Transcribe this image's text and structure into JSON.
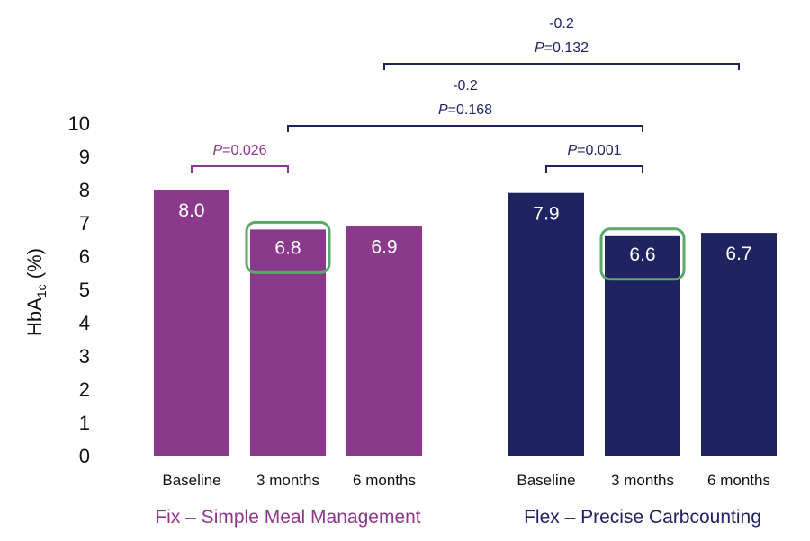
{
  "chart_data": {
    "type": "bar",
    "ylabel_main": "HbA",
    "ylabel_sub": "1c",
    "ylabel_unit": " (%)",
    "ylim": [
      0,
      10
    ],
    "yticks": [
      "0",
      "1",
      "2",
      "3",
      "4",
      "5",
      "6",
      "7",
      "8",
      "9",
      "10"
    ],
    "grid": false,
    "groups": [
      {
        "label": "Fix – Simple Meal Management",
        "color": "#8b3a8b",
        "label_color": "#8b3a8b",
        "bars": [
          {
            "category": "Baseline",
            "value": 8.0,
            "label": "8.0",
            "highlight": false
          },
          {
            "category": "3 months",
            "value": 6.8,
            "label": "6.8",
            "highlight": true
          },
          {
            "category": "6 months",
            "value": 6.9,
            "label": "6.9",
            "highlight": false
          }
        ]
      },
      {
        "label": "Flex – Precise Carbcounting",
        "color": "#1f2461",
        "label_color": "#1f2461",
        "bars": [
          {
            "category": "Baseline",
            "value": 7.9,
            "label": "7.9",
            "highlight": false
          },
          {
            "category": "3 months",
            "value": 6.6,
            "label": "6.6",
            "highlight": true
          },
          {
            "category": "6 months",
            "value": 6.7,
            "label": "6.7",
            "highlight": false
          }
        ]
      }
    ],
    "highlight_color": "#5aa86a",
    "comparisons": [
      {
        "from": [
          0,
          0
        ],
        "to": [
          0,
          1
        ],
        "diff": "",
        "p": "0.026",
        "color": "#8b3a8b"
      },
      {
        "from": [
          1,
          0
        ],
        "to": [
          1,
          1
        ],
        "diff": "",
        "p": "0.001",
        "color": "#1f2461"
      },
      {
        "from": [
          0,
          1
        ],
        "to": [
          1,
          1
        ],
        "diff": "-0.2",
        "p": "0.168",
        "color": "#1f2461"
      },
      {
        "from": [
          0,
          2
        ],
        "to": [
          1,
          2
        ],
        "diff": "-0.2",
        "p": "0.132",
        "color": "#1f2461"
      }
    ],
    "p_prefix": "P",
    "p_sep": "="
  }
}
